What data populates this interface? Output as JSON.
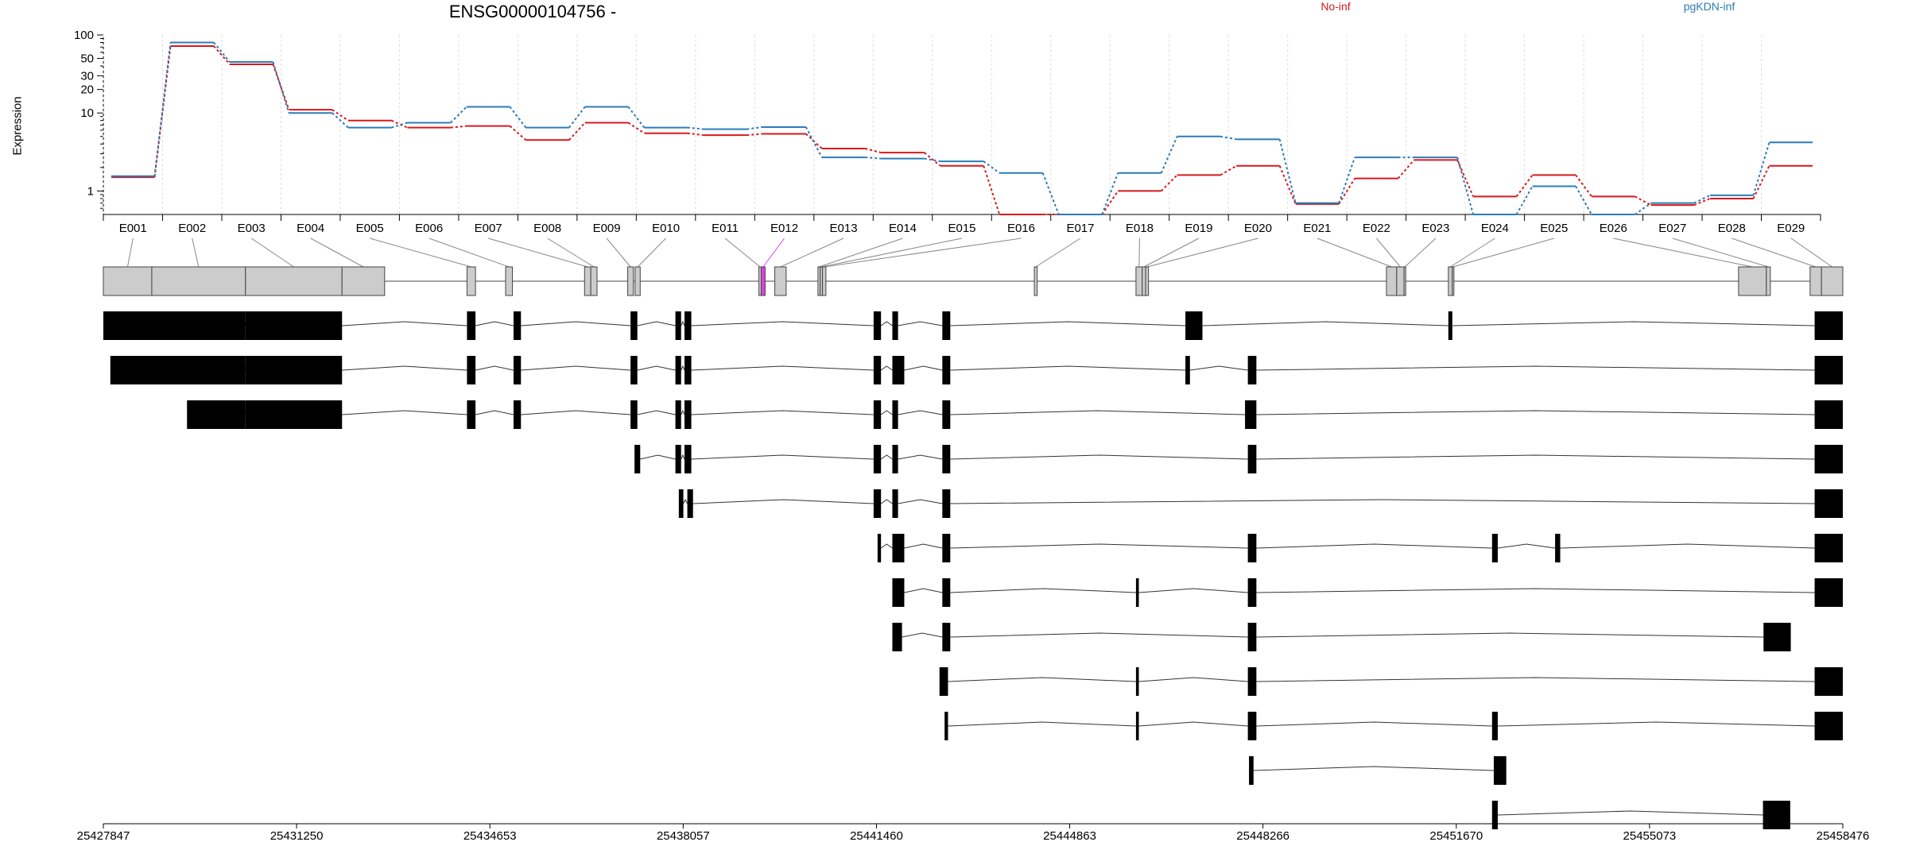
{
  "chart_data": {
    "type": "line",
    "title": "ENSG00000104756 -",
    "ylabel": "Expression",
    "xlabel": "",
    "yscale": "log",
    "ylim": [
      0.5,
      100
    ],
    "yticks": [
      "1",
      "10",
      "20",
      "30",
      "50",
      "100"
    ],
    "ytick_values": [
      1,
      10,
      20,
      30,
      50,
      100
    ],
    "categories": [
      "E001",
      "E002",
      "E003",
      "E004",
      "E005",
      "E006",
      "E007",
      "E008",
      "E009",
      "E010",
      "E011",
      "E012",
      "E013",
      "E014",
      "E015",
      "E016",
      "E017",
      "E018",
      "E019",
      "E020",
      "E021",
      "E022",
      "E023",
      "E024",
      "E025",
      "E026",
      "E027",
      "E028",
      "E029"
    ],
    "series": [
      {
        "name": "No-inf",
        "color": "#d7191c",
        "values": [
          1.5,
          72,
          42,
          11,
          8,
          6.5,
          6.8,
          4.5,
          7.5,
          5.5,
          5.2,
          5.4,
          3.5,
          3.1,
          2.1,
          0.5,
          0.5,
          1,
          1.6,
          2.1,
          0.68,
          1.45,
          2.5,
          0.85,
          1.6,
          0.85,
          0.66,
          0.8,
          2.1
        ],
        "legend_position": "top"
      },
      {
        "name": "pgKDN-inf",
        "color": "#2c7bb6",
        "values": [
          1.55,
          80,
          45,
          10,
          6.5,
          7.5,
          12,
          6.5,
          12,
          6.5,
          6.2,
          6.6,
          2.7,
          2.6,
          2.4,
          1.7,
          0.5,
          1.7,
          5,
          4.6,
          0.7,
          2.7,
          2.7,
          0.5,
          1.15,
          0.5,
          0.7,
          0.88,
          4.2
        ],
        "legend_position": "top-right"
      }
    ],
    "grid": "x-dashed",
    "exon_coordinates": [
      [
        25427847,
        25428700
      ],
      [
        25428700,
        25430350
      ],
      [
        25430350,
        25432050
      ],
      [
        25432050,
        25432800
      ],
      [
        25434250,
        25434400
      ],
      [
        25434930,
        25435050
      ],
      [
        25436320,
        25436430
      ],
      [
        25436430,
        25436540
      ],
      [
        25437080,
        25437180
      ],
      [
        25437210,
        25437300
      ],
      [
        25439390,
        25439430
      ],
      [
        25439430,
        25439500
      ],
      [
        25439670,
        25439870
      ],
      [
        25440430,
        25440470
      ],
      [
        25440470,
        25440510
      ],
      [
        25440510,
        25440570
      ],
      [
        25444240,
        25444290
      ],
      [
        25446030,
        25446140
      ],
      [
        25446140,
        25446200
      ],
      [
        25446200,
        25446250
      ],
      [
        25450440,
        25450620
      ],
      [
        25450620,
        25450750
      ],
      [
        25450750,
        25450780
      ],
      [
        25451530,
        25451600
      ],
      [
        25451600,
        25451620
      ],
      [
        25456640,
        25457130
      ],
      [
        25457130,
        25457200
      ],
      [
        25457900,
        25458100
      ],
      [
        25458100,
        25458476
      ]
    ],
    "highlight_exon": "E012",
    "highlight_color": "#e040e0",
    "transcripts": [
      [
        [
          25427847,
          25430350
        ],
        [
          25430350,
          25432050
        ],
        [
          25434250,
          25434400
        ],
        [
          25435070,
          25435200
        ],
        [
          25437130,
          25437250
        ],
        [
          25437920,
          25438020
        ],
        [
          25438080,
          25438200
        ],
        [
          25441410,
          25441540
        ],
        [
          25441740,
          25441840
        ],
        [
          25442620,
          25442760
        ],
        [
          25446900,
          25447200
        ],
        [
          25451530,
          25451600
        ],
        [
          25457980,
          25458476
        ]
      ],
      [
        [
          25427970,
          25430350
        ],
        [
          25430350,
          25432050
        ],
        [
          25434250,
          25434400
        ],
        [
          25435070,
          25435200
        ],
        [
          25437130,
          25437250
        ],
        [
          25437920,
          25438020
        ],
        [
          25438080,
          25438200
        ],
        [
          25441410,
          25441540
        ],
        [
          25441740,
          25441950
        ],
        [
          25442620,
          25442760
        ],
        [
          25446900,
          25446980
        ],
        [
          25448000,
          25448150
        ],
        [
          25457980,
          25458476
        ]
      ],
      [
        [
          25429320,
          25430350
        ],
        [
          25430350,
          25432050
        ],
        [
          25434250,
          25434400
        ],
        [
          25435070,
          25435200
        ],
        [
          25437130,
          25437250
        ],
        [
          25437920,
          25438020
        ],
        [
          25438080,
          25438200
        ],
        [
          25441410,
          25441540
        ],
        [
          25441740,
          25441840
        ],
        [
          25442620,
          25442760
        ],
        [
          25447950,
          25448150
        ],
        [
          25457980,
          25458476
        ]
      ],
      [
        [
          25437200,
          25437300
        ],
        [
          25437920,
          25438020
        ],
        [
          25438080,
          25438200
        ],
        [
          25441410,
          25441540
        ],
        [
          25441740,
          25441840
        ],
        [
          25442620,
          25442760
        ],
        [
          25448000,
          25448150
        ],
        [
          25457980,
          25458476
        ]
      ],
      [
        [
          25437980,
          25438060
        ],
        [
          25438130,
          25438230
        ],
        [
          25441410,
          25441540
        ],
        [
          25441740,
          25441840
        ],
        [
          25442620,
          25442760
        ],
        [
          25457980,
          25458476
        ]
      ],
      [
        [
          25441480,
          25441540
        ],
        [
          25441740,
          25441950
        ],
        [
          25442620,
          25442760
        ],
        [
          25448000,
          25448150
        ],
        [
          25452300,
          25452400
        ],
        [
          25453410,
          25453500
        ],
        [
          25457980,
          25458476
        ]
      ],
      [
        [
          25441740,
          25441950
        ],
        [
          25442620,
          25442760
        ],
        [
          25446030,
          25446080
        ],
        [
          25448000,
          25448150
        ],
        [
          25457980,
          25458476
        ]
      ],
      [
        [
          25441740,
          25441910
        ],
        [
          25442620,
          25442760
        ],
        [
          25448000,
          25448150
        ],
        [
          25457080,
          25457560
        ]
      ],
      [
        [
          25442570,
          25442720
        ],
        [
          25446030,
          25446080
        ],
        [
          25448000,
          25448150
        ],
        [
          25457980,
          25458476
        ]
      ],
      [
        [
          25442660,
          25442720
        ],
        [
          25446030,
          25446080
        ],
        [
          25448000,
          25448150
        ],
        [
          25452300,
          25452400
        ],
        [
          25457980,
          25458476
        ]
      ],
      [
        [
          25448020,
          25448100
        ],
        [
          25452330,
          25452550
        ]
      ],
      [
        [
          25452300,
          25452400
        ],
        [
          25457070,
          25457550
        ]
      ]
    ],
    "genomic_axis": {
      "ticks": [
        25427847,
        25431250,
        25434653,
        25438057,
        25441460,
        25444863,
        25448266,
        25451670,
        25455073,
        25458476
      ],
      "tick_labels": [
        "25427847",
        "25431250",
        "25434653",
        "25438057",
        "25441460",
        "25444863",
        "25448266",
        "25451670",
        "25455073",
        "25458476"
      ]
    }
  }
}
